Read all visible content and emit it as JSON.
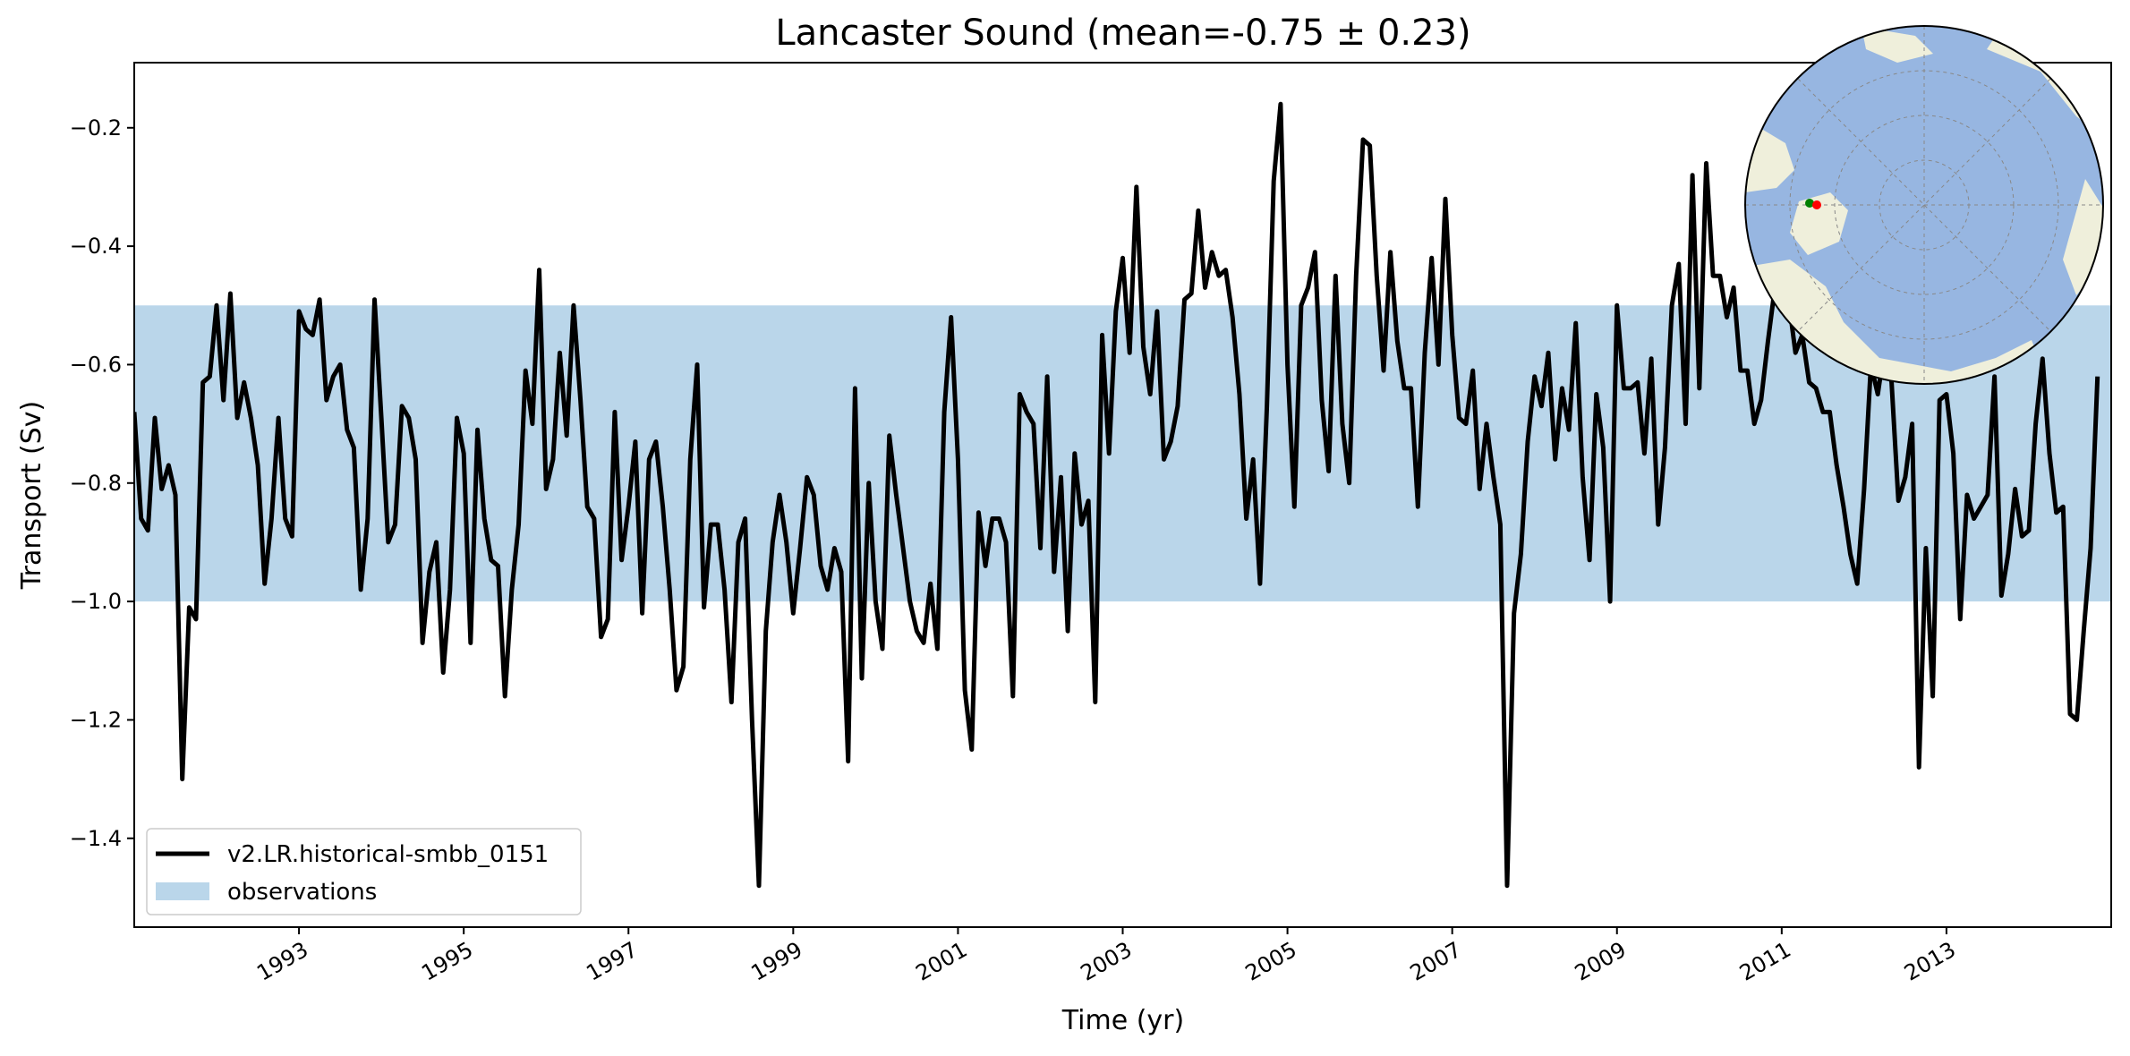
{
  "chart_data": {
    "type": "line",
    "title": "Lancaster Sound (mean=-0.75 ± 0.23)",
    "xlabel": "Time (yr)",
    "ylabel": "Transport (Sv)",
    "xlim": [
      1991.0,
      2015.0
    ],
    "ylim": [
      -1.55,
      -0.09
    ],
    "x_ticks": [
      1993,
      1995,
      1997,
      1999,
      2001,
      2003,
      2005,
      2007,
      2009,
      2011,
      2013
    ],
    "y_ticks": [
      -1.4,
      -1.2,
      -1.0,
      -0.8,
      -0.6,
      -0.4,
      -0.2
    ],
    "y_tick_labels": [
      "−1.4",
      "−1.2",
      "−1.0",
      "−0.8",
      "−0.6",
      "−0.4",
      "−0.2"
    ],
    "legend_position": "lower-left",
    "grid": false,
    "observations_band": {
      "name": "observations",
      "y_range": [
        -1.0,
        -0.5
      ],
      "color": "#bad6ea"
    },
    "series": [
      {
        "name": "v2.LR.historical-smbb_0151",
        "color": "#000000",
        "start_year": 1991.0,
        "step_years": 0.0833333,
        "values": [
          -0.68,
          -0.86,
          -0.88,
          -0.69,
          -0.81,
          -0.77,
          -0.82,
          -1.3,
          -1.01,
          -1.03,
          -0.63,
          -0.62,
          -0.5,
          -0.66,
          -0.48,
          -0.69,
          -0.63,
          -0.69,
          -0.77,
          -0.97,
          -0.86,
          -0.69,
          -0.86,
          -0.89,
          -0.51,
          -0.54,
          -0.55,
          -0.49,
          -0.66,
          -0.62,
          -0.6,
          -0.71,
          -0.74,
          -0.98,
          -0.86,
          -0.49,
          -0.69,
          -0.9,
          -0.87,
          -0.67,
          -0.69,
          -0.76,
          -1.07,
          -0.95,
          -0.9,
          -1.12,
          -0.98,
          -0.69,
          -0.75,
          -1.07,
          -0.71,
          -0.86,
          -0.93,
          -0.94,
          -1.16,
          -0.98,
          -0.87,
          -0.61,
          -0.7,
          -0.44,
          -0.81,
          -0.76,
          -0.58,
          -0.72,
          -0.5,
          -0.66,
          -0.84,
          -0.86,
          -1.06,
          -1.03,
          -0.68,
          -0.93,
          -0.84,
          -0.73,
          -1.02,
          -0.76,
          -0.73,
          -0.84,
          -0.98,
          -1.15,
          -1.11,
          -0.76,
          -0.6,
          -1.01,
          -0.87,
          -0.87,
          -0.98,
          -1.17,
          -0.9,
          -0.86,
          -1.2,
          -1.48,
          -1.05,
          -0.9,
          -0.82,
          -0.9,
          -1.02,
          -0.91,
          -0.79,
          -0.82,
          -0.94,
          -0.98,
          -0.91,
          -0.95,
          -1.27,
          -0.64,
          -1.13,
          -0.8,
          -1.0,
          -1.08,
          -0.72,
          -0.82,
          -0.91,
          -1.0,
          -1.05,
          -1.07,
          -0.97,
          -1.08,
          -0.68,
          -0.52,
          -0.76,
          -1.15,
          -1.25,
          -0.85,
          -0.94,
          -0.86,
          -0.86,
          -0.9,
          -1.16,
          -0.65,
          -0.68,
          -0.7,
          -0.91,
          -0.62,
          -0.95,
          -0.79,
          -1.05,
          -0.75,
          -0.87,
          -0.83,
          -1.17,
          -0.55,
          -0.75,
          -0.51,
          -0.42,
          -0.58,
          -0.3,
          -0.57,
          -0.65,
          -0.51,
          -0.76,
          -0.73,
          -0.67,
          -0.49,
          -0.48,
          -0.34,
          -0.47,
          -0.41,
          -0.45,
          -0.44,
          -0.52,
          -0.65,
          -0.86,
          -0.76,
          -0.97,
          -0.67,
          -0.29,
          -0.16,
          -0.6,
          -0.84,
          -0.5,
          -0.47,
          -0.41,
          -0.66,
          -0.78,
          -0.45,
          -0.7,
          -0.8,
          -0.45,
          -0.22,
          -0.23,
          -0.45,
          -0.61,
          -0.41,
          -0.56,
          -0.64,
          -0.64,
          -0.84,
          -0.58,
          -0.42,
          -0.6,
          -0.32,
          -0.55,
          -0.69,
          -0.7,
          -0.61,
          -0.81,
          -0.7,
          -0.79,
          -0.87,
          -1.48,
          -1.02,
          -0.92,
          -0.73,
          -0.62,
          -0.67,
          -0.58,
          -0.76,
          -0.64,
          -0.71,
          -0.53,
          -0.79,
          -0.93,
          -0.65,
          -0.74,
          -1.0,
          -0.5,
          -0.64,
          -0.64,
          -0.63,
          -0.75,
          -0.59,
          -0.87,
          -0.74,
          -0.5,
          -0.43,
          -0.7,
          -0.28,
          -0.64,
          -0.26,
          -0.45,
          -0.45,
          -0.52,
          -0.47,
          -0.61,
          -0.61,
          -0.7,
          -0.66,
          -0.56,
          -0.47,
          -0.34,
          -0.49,
          -0.58,
          -0.55,
          -0.63,
          -0.64,
          -0.68,
          -0.68,
          -0.77,
          -0.84,
          -0.92,
          -0.97,
          -0.81,
          -0.6,
          -0.65,
          -0.57,
          -0.63,
          -0.83,
          -0.79,
          -0.7,
          -1.28,
          -0.91,
          -1.16,
          -0.66,
          -0.65,
          -0.75,
          -1.03,
          -0.82,
          -0.86,
          -0.84,
          -0.82,
          -0.62,
          -0.99,
          -0.92,
          -0.81,
          -0.89,
          -0.88,
          -0.7,
          -0.59,
          -0.75,
          -0.85,
          -0.84,
          -1.19,
          -1.2,
          -1.05,
          -0.91,
          -0.62
        ]
      }
    ],
    "inset_map": {
      "type": "north-polar-stereographic",
      "ocean_color": "#97b6e1",
      "land_color": "#efefdb",
      "section_start_color": "#008000",
      "section_end_color": "#ff0000"
    }
  }
}
